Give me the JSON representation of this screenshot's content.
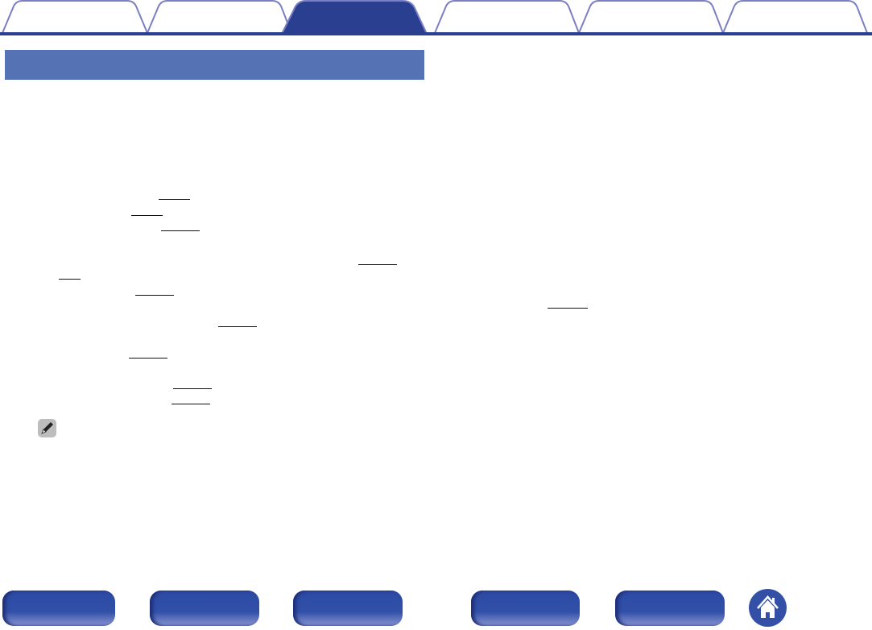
{
  "tabs": {
    "count": 6,
    "active_index": 2,
    "labels": [
      "",
      "",
      "",
      "",
      "",
      ""
    ]
  },
  "section_header": {
    "title": ""
  },
  "note_icon": "pencil-icon",
  "footer": {
    "buttons": [
      "",
      "",
      "",
      "",
      ""
    ],
    "home_icon": "home-icon"
  },
  "colors": {
    "tab_border": "#7a7fc4",
    "active_tab": "#2a3f8f",
    "header_bar": "#5572b5",
    "nav_button": "#2c4aa3"
  }
}
